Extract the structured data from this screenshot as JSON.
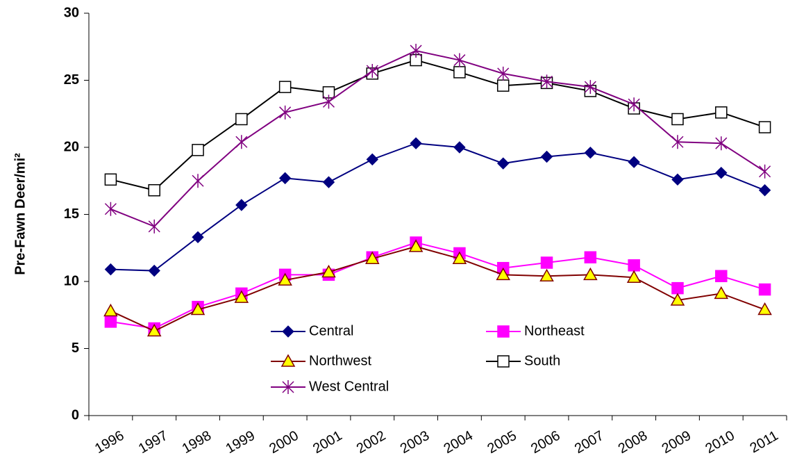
{
  "chart_data": {
    "type": "line",
    "y_label": "Pre-Fawn Deer/mi²",
    "categories": [
      "1996",
      "1997",
      "1998",
      "1999",
      "2000",
      "2001",
      "2002",
      "2003",
      "2004",
      "2005",
      "2006",
      "2007",
      "2008",
      "2009",
      "2010",
      "2011"
    ],
    "series": [
      {
        "name": "Central",
        "color": "#000080",
        "marker": "diamond",
        "marker_fill": "#000080",
        "values": [
          10.9,
          10.8,
          13.3,
          15.7,
          17.7,
          17.4,
          19.1,
          20.3,
          20.0,
          18.8,
          19.3,
          19.6,
          18.9,
          17.6,
          18.1,
          16.8
        ]
      },
      {
        "name": "Northeast",
        "color": "#FF00FF",
        "marker": "square",
        "marker_fill": "#FF00FF",
        "values": [
          7.0,
          6.5,
          8.1,
          9.1,
          10.5,
          10.5,
          11.8,
          12.9,
          12.1,
          11.0,
          11.4,
          11.8,
          11.2,
          9.5,
          10.4,
          9.4
        ]
      },
      {
        "name": "Northwest",
        "color": "#800000",
        "marker": "triangle",
        "marker_fill": "#FFFF00",
        "values": [
          7.8,
          6.3,
          7.9,
          8.8,
          10.1,
          10.7,
          11.7,
          12.6,
          11.7,
          10.5,
          10.4,
          10.5,
          10.3,
          8.6,
          9.1,
          7.9
        ]
      },
      {
        "name": "South",
        "color": "#000000",
        "marker": "square",
        "marker_fill": "#FFFFFF",
        "values": [
          17.6,
          16.8,
          19.8,
          22.1,
          24.5,
          24.1,
          25.5,
          26.5,
          25.6,
          24.6,
          24.8,
          24.2,
          22.9,
          22.1,
          22.6,
          21.5
        ]
      },
      {
        "name": "West Central",
        "color": "#800080",
        "marker": "star",
        "marker_fill": "none",
        "values": [
          15.4,
          14.1,
          17.5,
          20.4,
          22.6,
          23.4,
          25.7,
          27.2,
          26.5,
          25.5,
          24.9,
          24.5,
          23.2,
          20.4,
          20.3,
          18.2
        ]
      }
    ],
    "ylim": [
      0,
      30
    ],
    "yticks": [
      0,
      5,
      10,
      15,
      20,
      25,
      30
    ],
    "grid": false
  }
}
